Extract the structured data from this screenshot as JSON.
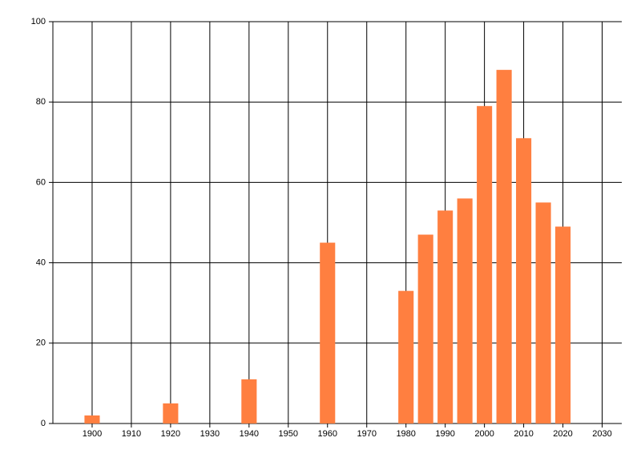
{
  "chart_data": {
    "type": "bar",
    "x": [
      1900,
      1920,
      1940,
      1960,
      1980,
      1985,
      1990,
      1995,
      2000,
      2005,
      2010,
      2015,
      2020
    ],
    "values": [
      2,
      5,
      11,
      45,
      33,
      47,
      53,
      56,
      79,
      88,
      71,
      55,
      49
    ],
    "color": "#ff7f40",
    "xlim": [
      1890,
      2035
    ],
    "xticks": [
      1900,
      1910,
      1920,
      1930,
      1940,
      1950,
      1960,
      1970,
      1980,
      1990,
      2000,
      2010,
      2020,
      2030
    ],
    "ylim": [
      0,
      100
    ],
    "yticks": [
      0,
      20,
      40,
      60,
      80,
      100
    ],
    "grid": true
  }
}
